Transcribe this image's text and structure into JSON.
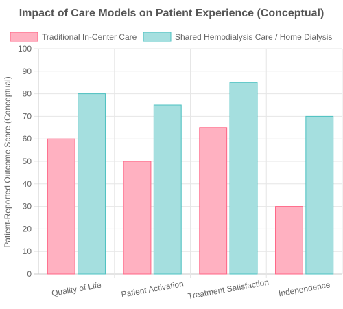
{
  "chart_data": {
    "type": "bar",
    "title": "Impact of Care Models on Patient Experience (Conceptual)",
    "xlabel": "",
    "ylabel": "Patient-Reported Outcome Score (Conceptual)",
    "categories": [
      "Quality of Life",
      "Patient Activation",
      "Treatment Satisfaction",
      "Independence"
    ],
    "series": [
      {
        "name": "Traditional In-Center Care",
        "values": [
          60,
          50,
          65,
          30
        ],
        "fill": "#ffb1c1",
        "stroke": "#ff6384"
      },
      {
        "name": "Shared Hemodialysis Care / Home Dialysis",
        "values": [
          80,
          75,
          85,
          70
        ],
        "fill": "#a5dfdf",
        "stroke": "#4bc0c0"
      }
    ],
    "ylim": [
      0,
      100
    ],
    "yticks": [
      0,
      10,
      20,
      30,
      40,
      50,
      60,
      70,
      80,
      90,
      100
    ],
    "grid": true,
    "legend_position": "top"
  }
}
